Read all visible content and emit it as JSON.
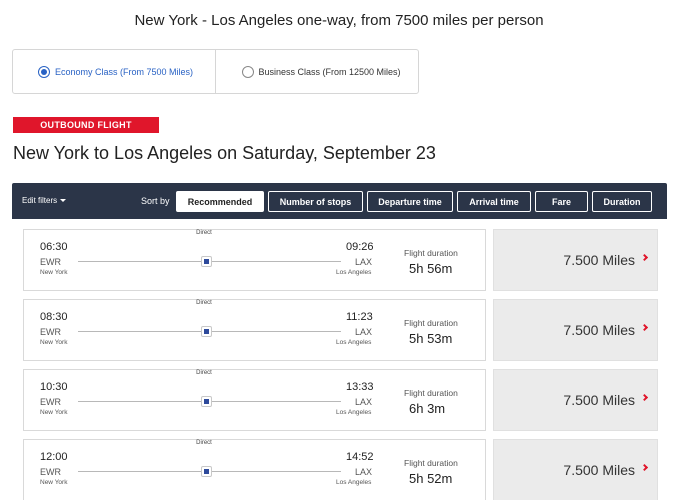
{
  "page": {
    "title": "New York - Los Angeles one-way, from 7500 miles per person"
  },
  "class_tabs": [
    {
      "label": "Economy Class (From 7500 Miles)",
      "selected": true
    },
    {
      "label": "Business Class (From 12500 Miles)",
      "selected": false
    }
  ],
  "outbound": {
    "badge": "OUTBOUND FLIGHT",
    "title": "New York to Los Angeles on Saturday, September 23"
  },
  "filter_bar": {
    "edit_filters": "Edit filters",
    "sort_by": "Sort by",
    "sort_options": [
      {
        "label": "Recommended",
        "active": true
      },
      {
        "label": "Number of stops",
        "active": false
      },
      {
        "label": "Departure time",
        "active": false
      },
      {
        "label": "Arrival time",
        "active": false
      },
      {
        "label": "Fare",
        "active": false
      },
      {
        "label": "Duration",
        "active": false
      }
    ]
  },
  "flights": [
    {
      "stops": "Direct",
      "dep_time": "06:30",
      "dep_code": "EWR",
      "dep_city": "New York",
      "arr_time": "09:26",
      "arr_code": "LAX",
      "arr_city": "Los Angeles",
      "duration_label": "Flight duration",
      "duration": "5h 56m",
      "fare": "7.500 Miles"
    },
    {
      "stops": "Direct",
      "dep_time": "08:30",
      "dep_code": "EWR",
      "dep_city": "New York",
      "arr_time": "11:23",
      "arr_code": "LAX",
      "arr_city": "Los Angeles",
      "duration_label": "Flight duration",
      "duration": "5h 53m",
      "fare": "7.500 Miles"
    },
    {
      "stops": "Direct",
      "dep_time": "10:30",
      "dep_code": "EWR",
      "dep_city": "New York",
      "arr_time": "13:33",
      "arr_code": "LAX",
      "arr_city": "Los Angeles",
      "duration_label": "Flight duration",
      "duration": "6h 3m",
      "fare": "7.500 Miles"
    },
    {
      "stops": "Direct",
      "dep_time": "12:00",
      "dep_code": "EWR",
      "dep_city": "New York",
      "arr_time": "14:52",
      "arr_code": "LAX",
      "arr_city": "Los Angeles",
      "duration_label": "Flight duration",
      "duration": "5h 52m",
      "fare": "7.500 Miles"
    }
  ],
  "colors": {
    "accent_red": "#e0162b",
    "selected_blue": "#2962c4",
    "filter_bar_bg": "#2b3548"
  }
}
